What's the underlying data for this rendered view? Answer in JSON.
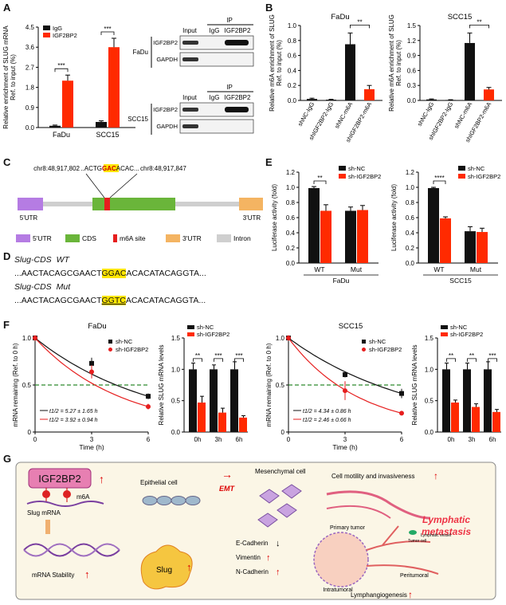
{
  "panels": {
    "A": {
      "letter": "A",
      "chart_data": {
        "type": "bar",
        "categories": [
          "FaDu",
          "SCC15"
        ],
        "series": [
          {
            "name": "IgG",
            "values": [
              0.08,
              0.25
            ],
            "err": [
              0.03,
              0.05
            ],
            "color": "#111111"
          },
          {
            "name": "IGF2BP2",
            "values": [
              2.1,
              3.6
            ],
            "err": [
              0.25,
              0.4
            ],
            "color": "#ff2a00"
          }
        ],
        "ylabel": "Relative enrichment of SLUG mRNA Ref. to input (%)",
        "ylim": [
          0,
          4.5
        ],
        "yticks": [
          "0.0",
          "0.9",
          "1.8",
          "2.7",
          "3.6",
          "4.5"
        ],
        "sig": [
          "***",
          "***"
        ]
      },
      "blots": {
        "ip_label": "IP",
        "lanes": [
          "Input",
          "IgG",
          "IGF2BP2"
        ],
        "rows": [
          "IGF2BP2",
          "GAPDH"
        ],
        "cells": [
          "FaDu",
          "SCC15"
        ]
      }
    },
    "B": {
      "letter": "B",
      "charts": [
        {
          "type": "bar",
          "title": "FaDu",
          "categories": [
            "shNC-IgG",
            "shIGF2BP2-IgG",
            "shNC-m6A",
            "shIGF2BP2-m6A"
          ],
          "values": [
            0.02,
            0.01,
            0.75,
            0.15
          ],
          "err": [
            0.01,
            0.005,
            0.15,
            0.05
          ],
          "colors": [
            "#111111",
            "#111111",
            "#111111",
            "#ff2a00"
          ],
          "ylabel": "Relative m6A enrichment of SLUG Ref. to input (%)",
          "ylim": [
            0,
            1.0
          ],
          "yticks": [
            "0.0",
            "0.2",
            "0.4",
            "0.6",
            "0.8",
            "1.0"
          ],
          "sig": "**"
        },
        {
          "type": "bar",
          "title": "SCC15",
          "categories": [
            "shNC-IgG",
            "shIGF2BP2-IgG",
            "shNC-m6A",
            "shIGF2BP2-m6A"
          ],
          "values": [
            0.02,
            0.01,
            1.15,
            0.22
          ],
          "err": [
            0.01,
            0.005,
            0.2,
            0.04
          ],
          "colors": [
            "#111111",
            "#111111",
            "#111111",
            "#ff2a00"
          ],
          "ylabel": "Relative m6A enrichment of SLUG Ref. to input (%)",
          "ylim": [
            0,
            1.5
          ],
          "yticks": [
            "0.0",
            "0.3",
            "0.6",
            "0.9",
            "1.2",
            "1.5"
          ],
          "sig": "**"
        }
      ]
    },
    "C": {
      "letter": "C",
      "left_coord": "chr8:48,917,802",
      "right_coord": "chr8:48,917,847",
      "seq_pre": "..ACTG",
      "seq_hl": "GAC",
      "seq_post": "ACAC...",
      "utr5": "5'UTR",
      "utr3": "3'UTR",
      "legend": [
        {
          "label": "5'UTR",
          "color": "#b57ce3"
        },
        {
          "label": "CDS",
          "color": "#6ab53a"
        },
        {
          "label": "m6A site",
          "color": "#e61e1e"
        },
        {
          "label": "3'UTR",
          "color": "#f4b462"
        },
        {
          "label": "Intron",
          "color": "#cfcfcf"
        }
      ]
    },
    "D": {
      "letter": "D",
      "rows": [
        {
          "name": "Slug-CDS",
          "tag": "WT",
          "pre": "...AACTACAGCGAACT",
          "hl": "GGAC",
          "post": "ACACATACAGGTA..."
        },
        {
          "name": "Slug-CDS",
          "tag": "Mut",
          "pre": "...AACTACAGCGAACT",
          "hl": "GGTC",
          "post": "ACACATACAGGTA..."
        }
      ]
    },
    "E": {
      "letter": "E",
      "charts": [
        {
          "type": "bar",
          "categories": [
            "WT",
            "Mut"
          ],
          "cell": "FaDu",
          "series": [
            {
              "name": "sh-NC",
              "values": [
                0.99,
                0.69
              ],
              "err": [
                0.02,
                0.05
              ],
              "color": "#111111"
            },
            {
              "name": "sh-IGF2BP2",
              "values": [
                0.69,
                0.7
              ],
              "err": [
                0.08,
                0.06
              ],
              "color": "#ff2a00"
            }
          ],
          "ylabel": "Luciferase activity (fold)",
          "ylim": [
            0,
            1.2
          ],
          "yticks": [
            "0.0",
            "0.2",
            "0.4",
            "0.6",
            "0.8",
            "1.0",
            "1.2"
          ],
          "sig": "**"
        },
        {
          "type": "bar",
          "categories": [
            "WT",
            "Mut"
          ],
          "cell": "SCC15",
          "series": [
            {
              "name": "sh-NC",
              "values": [
                0.99,
                0.42
              ],
              "err": [
                0.01,
                0.06
              ],
              "color": "#111111"
            },
            {
              "name": "sh-IGF2BP2",
              "values": [
                0.59,
                0.41
              ],
              "err": [
                0.02,
                0.05
              ],
              "color": "#ff2a00"
            }
          ],
          "ylabel": "Luciferase activity (fold)",
          "ylim": [
            0,
            1.2
          ],
          "yticks": [
            "0.0",
            "0.2",
            "0.4",
            "0.6",
            "0.8",
            "1.0",
            "1.2"
          ],
          "sig": "****"
        }
      ]
    },
    "F": {
      "letter": "F",
      "groups": [
        {
          "title": "FaDu",
          "line": {
            "type": "line",
            "x": [
              0,
              3,
              6
            ],
            "series": [
              {
                "name": "sh-NC",
                "values": [
                  1.0,
                  0.73,
                  0.38
                ],
                "err": [
                  0.03,
                  0.06,
                  0.03
                ],
                "color": "#111111"
              },
              {
                "name": "sh-IGF2BP2",
                "values": [
                  1.0,
                  0.64,
                  0.27
                ],
                "err": [
                  0.03,
                  0.07,
                  0.03
                ],
                "color": "#e61e1e"
              }
            ],
            "ylabel": "mRNA remaining (Ref. to 0 h)",
            "xlabel": "Time (h)",
            "ylim": [
              0,
              1.0
            ],
            "xlim": [
              0,
              6
            ],
            "yticks": [
              "0",
              "0.5",
              "1.0"
            ],
            "xticks": [
              "0",
              "3",
              "6"
            ],
            "halflife_nc": "t1/2 = 5.27 ± 1.65 h",
            "halflife_kd": "t1/2 = 3.92 ± 0.94 h"
          },
          "bar": {
            "type": "bar",
            "categories": [
              "0h",
              "3h",
              "6h"
            ],
            "series": [
              {
                "name": "sh-NC",
                "values": [
                  1.0,
                  1.0,
                  1.0
                ],
                "err": [
                  0.1,
                  0.07,
                  0.12
                ],
                "color": "#111111"
              },
              {
                "name": "sh-IGF2BP2",
                "values": [
                  0.47,
                  0.31,
                  0.23
                ],
                "err": [
                  0.1,
                  0.07,
                  0.03
                ],
                "color": "#ff2a00"
              }
            ],
            "ylabel": "Relative SLUG mRNA levels",
            "ylim": [
              0,
              1.5
            ],
            "yticks": [
              "0.0",
              "0.5",
              "1.0",
              "1.5"
            ],
            "sig": [
              "**",
              "***",
              "***"
            ]
          }
        },
        {
          "title": "SCC15",
          "line": {
            "type": "line",
            "x": [
              0,
              3,
              6
            ],
            "series": [
              {
                "name": "sh-NC",
                "values": [
                  1.0,
                  0.61,
                  0.41
                ],
                "err": [
                  0.03,
                  0.03,
                  0.05
                ],
                "color": "#111111"
              },
              {
                "name": "sh-IGF2BP2",
                "values": [
                  1.0,
                  0.44,
                  0.2
                ],
                "err": [
                  0.03,
                  0.1,
                  0.02
                ],
                "color": "#e61e1e"
              }
            ],
            "ylabel": "mRNA remaining (Ref. to 0 h)",
            "xlabel": "Time (h)",
            "ylim": [
              0,
              1.0
            ],
            "xlim": [
              0,
              6
            ],
            "yticks": [
              "0",
              "0.5",
              "1.0"
            ],
            "xticks": [
              "0",
              "3",
              "6"
            ],
            "halflife_nc": "t1/2 = 4.34 ± 0.86 h",
            "halflife_kd": "t1/2 = 2.46 ± 0.66 h"
          },
          "bar": {
            "type": "bar",
            "categories": [
              "0h",
              "3h",
              "6h"
            ],
            "series": [
              {
                "name": "sh-NC",
                "values": [
                  1.0,
                  1.0,
                  1.0
                ],
                "err": [
                  0.1,
                  0.1,
                  0.12
                ],
                "color": "#111111"
              },
              {
                "name": "sh-IGF2BP2",
                "values": [
                  0.47,
                  0.4,
                  0.32
                ],
                "err": [
                  0.04,
                  0.05,
                  0.04
                ],
                "color": "#ff2a00"
              }
            ],
            "ylabel": "Relative SLUG mRNA levels",
            "ylim": [
              0,
              1.5
            ],
            "yticks": [
              "0.0",
              "0.5",
              "1.0",
              "1.5"
            ],
            "sig": [
              "**",
              "**",
              "***"
            ]
          }
        }
      ]
    },
    "G": {
      "letter": "G",
      "igf2bp2": "IGF2BP2",
      "m6a": "m6A",
      "slug_mrna": "Slug mRNA",
      "mrna_stability": "mRNA Stability",
      "slug": "Slug",
      "epithelial": "Epithelial cell",
      "emt": "EMT",
      "mesenchymal": "Mesenchymal cell",
      "ecad": "E-Cadherin",
      "vim": "Vimentin",
      "ncad": "N-Cadherin",
      "motility": "Cell motility and invasiveness",
      "lymphatic": "Lymphatic metastasis",
      "primary": "Primary tumor",
      "tumor_cell": "Tumor cell",
      "lymph_vessel": "Lymphatic vessel",
      "intratumoral": "Intratumoral",
      "peritumoral": "Peritumoral",
      "lymphangio": "Lymphangiogenesis"
    }
  }
}
